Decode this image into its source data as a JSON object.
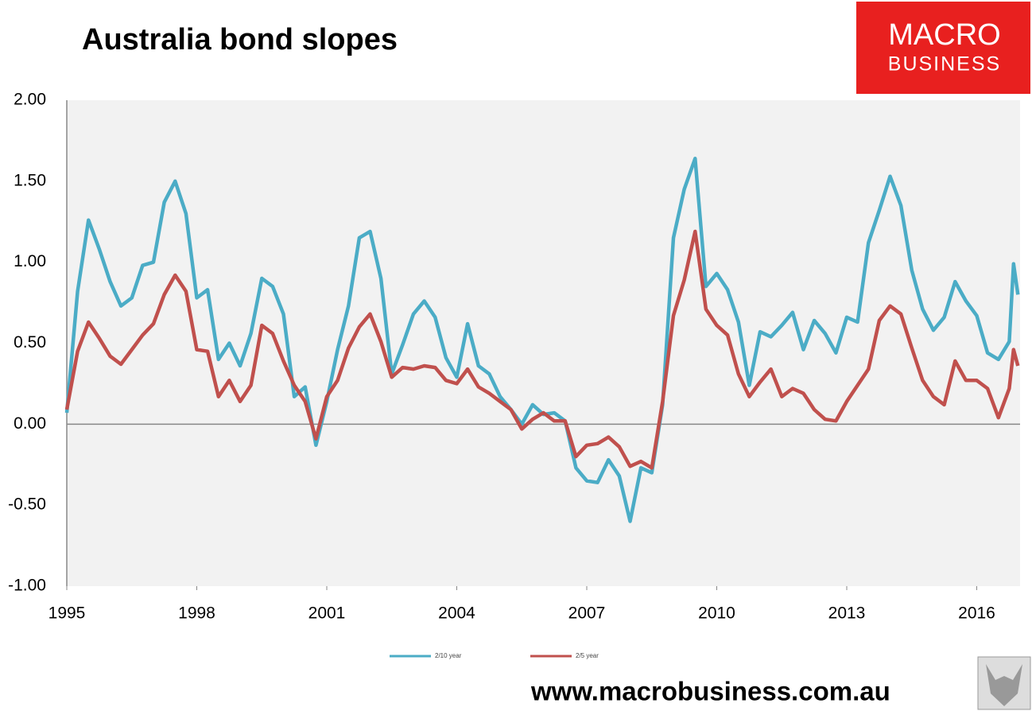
{
  "chart_data": {
    "type": "line",
    "title": "Australia bond slopes",
    "x": [
      1995,
      1995.25,
      1995.5,
      1995.75,
      1996,
      1996.25,
      1996.5,
      1996.75,
      1997,
      1997.25,
      1997.5,
      1997.75,
      1998,
      1998.25,
      1998.5,
      1998.75,
      1999,
      1999.25,
      1999.5,
      1999.75,
      2000,
      2000.25,
      2000.5,
      2000.75,
      2001,
      2001.25,
      2001.5,
      2001.75,
      2002,
      2002.25,
      2002.5,
      2002.75,
      2003,
      2003.25,
      2003.5,
      2003.75,
      2004,
      2004.25,
      2004.5,
      2004.75,
      2005,
      2005.25,
      2005.5,
      2005.75,
      2006,
      2006.25,
      2006.5,
      2006.75,
      2007,
      2007.25,
      2007.5,
      2007.75,
      2008,
      2008.25,
      2008.5,
      2008.75,
      2009,
      2009.25,
      2009.5,
      2009.75,
      2010,
      2010.25,
      2010.5,
      2010.75,
      2011,
      2011.25,
      2011.5,
      2011.75,
      2012,
      2012.25,
      2012.5,
      2012.75,
      2013,
      2013.25,
      2013.5,
      2013.75,
      2014,
      2014.25,
      2014.5,
      2014.75,
      2015,
      2015.25,
      2015.5,
      2015.75,
      2016,
      2016.25,
      2016.5,
      2016.75,
      2016.85,
      2016.95
    ],
    "series": [
      {
        "name": "2/10 year",
        "color": "#4bacc6",
        "values": [
          0.07,
          0.82,
          1.26,
          1.08,
          0.88,
          0.73,
          0.78,
          0.98,
          1.0,
          1.37,
          1.5,
          1.3,
          0.78,
          0.83,
          0.4,
          0.5,
          0.36,
          0.56,
          0.9,
          0.85,
          0.68,
          0.17,
          0.23,
          -0.13,
          0.14,
          0.46,
          0.73,
          1.15,
          1.19,
          0.9,
          0.31,
          0.49,
          0.68,
          0.76,
          0.66,
          0.41,
          0.29,
          0.62,
          0.36,
          0.31,
          0.17,
          0.09,
          0.0,
          0.12,
          0.06,
          0.07,
          0.02,
          -0.27,
          -0.35,
          -0.36,
          -0.22,
          -0.32,
          -0.6,
          -0.27,
          -0.3,
          0.12,
          1.15,
          1.45,
          1.64,
          0.85,
          0.93,
          0.83,
          0.63,
          0.24,
          0.57,
          0.54,
          0.61,
          0.69,
          0.46,
          0.64,
          0.56,
          0.44,
          0.66,
          0.63,
          1.12,
          1.32,
          1.53,
          1.35,
          0.95,
          0.71,
          0.58,
          0.66,
          0.88,
          0.76,
          0.67,
          0.44,
          0.4,
          0.51,
          0.99,
          0.8
        ]
      },
      {
        "name": "2/5 year",
        "color": "#c0504d",
        "values": [
          0.09,
          0.45,
          0.63,
          0.53,
          0.42,
          0.37,
          0.46,
          0.55,
          0.62,
          0.8,
          0.92,
          0.82,
          0.46,
          0.45,
          0.17,
          0.27,
          0.14,
          0.24,
          0.61,
          0.56,
          0.39,
          0.24,
          0.14,
          -0.09,
          0.17,
          0.27,
          0.47,
          0.6,
          0.68,
          0.51,
          0.29,
          0.35,
          0.34,
          0.36,
          0.35,
          0.27,
          0.25,
          0.34,
          0.23,
          0.19,
          0.14,
          0.09,
          -0.03,
          0.03,
          0.07,
          0.02,
          0.02,
          -0.2,
          -0.13,
          -0.12,
          -0.08,
          -0.14,
          -0.26,
          -0.23,
          -0.27,
          0.14,
          0.67,
          0.89,
          1.19,
          0.71,
          0.61,
          0.55,
          0.31,
          0.17,
          0.26,
          0.34,
          0.17,
          0.22,
          0.19,
          0.09,
          0.03,
          0.02,
          0.14,
          0.24,
          0.34,
          0.64,
          0.73,
          0.68,
          0.47,
          0.27,
          0.17,
          0.12,
          0.39,
          0.27,
          0.27,
          0.22,
          0.04,
          0.22,
          0.46,
          0.36
        ]
      }
    ],
    "xlim": [
      1995,
      2017
    ],
    "xticks": [
      1995,
      1998,
      2001,
      2004,
      2007,
      2010,
      2013,
      2016
    ],
    "ylim": [
      -1,
      2
    ],
    "yticks": [
      {
        "value": -1,
        "label": "-1.00"
      },
      {
        "value": -0.5,
        "label": "-0.50"
      },
      {
        "value": 0,
        "label": "0.00"
      },
      {
        "value": 0.5,
        "label": "0.50"
      },
      {
        "value": 1,
        "label": "1.00"
      },
      {
        "value": 1.5,
        "label": "1.50"
      },
      {
        "value": 2,
        "label": "2.00"
      }
    ],
    "grid": false,
    "legend": "bottom"
  },
  "logo": [
    "MACRO",
    "BUSINESS"
  ],
  "footer": "www.macrobusiness.com.au"
}
